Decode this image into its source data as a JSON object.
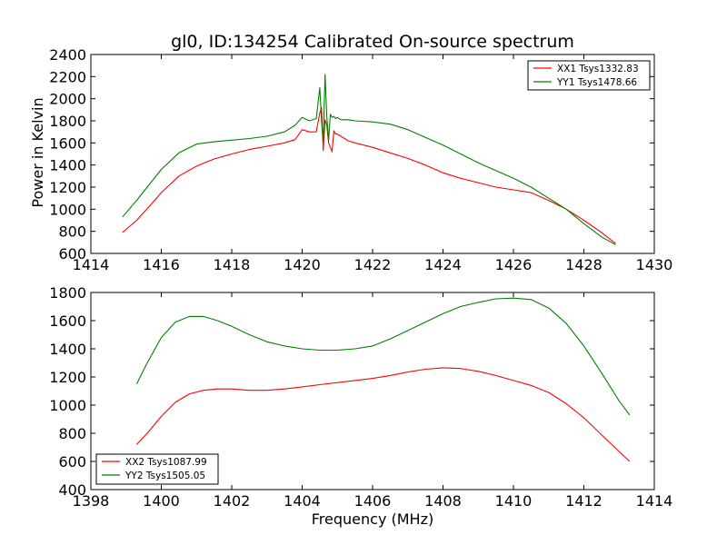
{
  "figure": {
    "title": "gl0, ID:134254 Calibrated On-source spectrum",
    "ylabel": "Power in Kelvin",
    "xlabel": "Frequency (MHz)"
  },
  "colors": {
    "red": "#ff0000",
    "green": "#008000",
    "axes": "#000000"
  },
  "chart_data": [
    {
      "type": "line",
      "title": "gl0, ID:134254 Calibrated On-source spectrum",
      "xlabel": "",
      "ylabel": "Power in Kelvin",
      "xlim": [
        1414,
        1430
      ],
      "ylim": [
        600,
        2400
      ],
      "xticks": [
        1414,
        1416,
        1418,
        1420,
        1422,
        1424,
        1426,
        1428,
        1430
      ],
      "yticks": [
        600,
        800,
        1000,
        1200,
        1400,
        1600,
        1800,
        2000,
        2200,
        2400
      ],
      "grid": false,
      "legend_position": "top-right",
      "series": [
        {
          "name": "XX1 Tsys1332.83",
          "color": "#ff0000",
          "x": [
            1414.9,
            1415.3,
            1415.7,
            1416.0,
            1416.5,
            1417.0,
            1417.5,
            1418.0,
            1418.5,
            1419.0,
            1419.5,
            1419.8,
            1420.0,
            1420.2,
            1420.4,
            1420.5,
            1420.55,
            1420.6,
            1420.65,
            1420.7,
            1420.75,
            1420.8,
            1420.85,
            1420.9,
            1420.95,
            1421.0,
            1421.1,
            1421.3,
            1421.5,
            1422.0,
            1422.5,
            1423.0,
            1423.5,
            1424.0,
            1424.5,
            1425.0,
            1425.5,
            1426.0,
            1426.5,
            1427.0,
            1427.5,
            1428.0,
            1428.5,
            1428.9
          ],
          "values": [
            790,
            900,
            1040,
            1150,
            1300,
            1390,
            1455,
            1500,
            1540,
            1570,
            1600,
            1630,
            1720,
            1700,
            1700,
            1870,
            1920,
            1530,
            1810,
            1760,
            1600,
            1560,
            1520,
            1710,
            1680,
            1680,
            1660,
            1620,
            1600,
            1560,
            1510,
            1460,
            1400,
            1330,
            1280,
            1240,
            1200,
            1175,
            1150,
            1080,
            1000,
            900,
            790,
            690
          ]
        },
        {
          "name": "YY1 Tsys1478.66",
          "color": "#008000",
          "x": [
            1414.9,
            1415.3,
            1415.7,
            1416.0,
            1416.5,
            1417.0,
            1417.5,
            1418.0,
            1418.5,
            1419.0,
            1419.5,
            1419.8,
            1420.0,
            1420.2,
            1420.4,
            1420.5,
            1420.55,
            1420.6,
            1420.65,
            1420.7,
            1420.75,
            1420.8,
            1420.85,
            1420.9,
            1420.95,
            1421.0,
            1421.1,
            1421.3,
            1421.5,
            1422.0,
            1422.5,
            1423.0,
            1423.5,
            1424.0,
            1424.5,
            1425.0,
            1425.5,
            1426.0,
            1426.5,
            1427.0,
            1427.5,
            1428.0,
            1428.5,
            1428.9
          ],
          "values": [
            930,
            1080,
            1240,
            1360,
            1510,
            1590,
            1610,
            1625,
            1640,
            1660,
            1700,
            1760,
            1830,
            1800,
            1820,
            2100,
            1800,
            1600,
            2220,
            1840,
            1620,
            1860,
            1830,
            1840,
            1820,
            1830,
            1810,
            1810,
            1800,
            1790,
            1770,
            1720,
            1650,
            1580,
            1500,
            1420,
            1350,
            1280,
            1200,
            1100,
            1000,
            870,
            750,
            680
          ]
        }
      ]
    },
    {
      "type": "line",
      "title": "",
      "xlabel": "Frequency (MHz)",
      "ylabel": "",
      "xlim": [
        1398,
        1414
      ],
      "ylim": [
        400,
        1800
      ],
      "xticks": [
        1398,
        1400,
        1402,
        1404,
        1406,
        1408,
        1410,
        1412,
        1414
      ],
      "yticks": [
        400,
        600,
        800,
        1000,
        1200,
        1400,
        1600,
        1800
      ],
      "grid": false,
      "legend_position": "bottom-left",
      "series": [
        {
          "name": "XX2 Tsys1087.99",
          "color": "#ff0000",
          "x": [
            1399.3,
            1399.6,
            1400.0,
            1400.4,
            1400.8,
            1401.2,
            1401.6,
            1402.0,
            1402.5,
            1403.0,
            1403.5,
            1404.0,
            1404.5,
            1405.0,
            1405.5,
            1406.0,
            1406.5,
            1407.0,
            1407.5,
            1408.0,
            1408.5,
            1409.0,
            1409.5,
            1410.0,
            1410.5,
            1411.0,
            1411.5,
            1412.0,
            1412.5,
            1413.0,
            1413.3
          ],
          "values": [
            720,
            800,
            920,
            1020,
            1080,
            1105,
            1115,
            1115,
            1105,
            1105,
            1115,
            1130,
            1145,
            1160,
            1175,
            1190,
            1210,
            1235,
            1255,
            1265,
            1260,
            1240,
            1210,
            1175,
            1140,
            1090,
            1010,
            910,
            790,
            670,
            600
          ]
        },
        {
          "name": "YY2 Tsys1505.05",
          "color": "#008000",
          "x": [
            1399.3,
            1399.6,
            1400.0,
            1400.4,
            1400.8,
            1401.2,
            1401.6,
            1402.0,
            1402.5,
            1403.0,
            1403.5,
            1404.0,
            1404.5,
            1405.0,
            1405.5,
            1406.0,
            1406.5,
            1407.0,
            1407.5,
            1408.0,
            1408.5,
            1409.0,
            1409.5,
            1410.0,
            1410.5,
            1411.0,
            1411.5,
            1412.0,
            1412.5,
            1413.0,
            1413.3
          ],
          "values": [
            1150,
            1300,
            1480,
            1590,
            1630,
            1630,
            1600,
            1560,
            1500,
            1450,
            1420,
            1400,
            1390,
            1390,
            1400,
            1420,
            1470,
            1530,
            1590,
            1650,
            1700,
            1730,
            1755,
            1760,
            1750,
            1690,
            1580,
            1420,
            1230,
            1030,
            930
          ]
        }
      ]
    }
  ]
}
